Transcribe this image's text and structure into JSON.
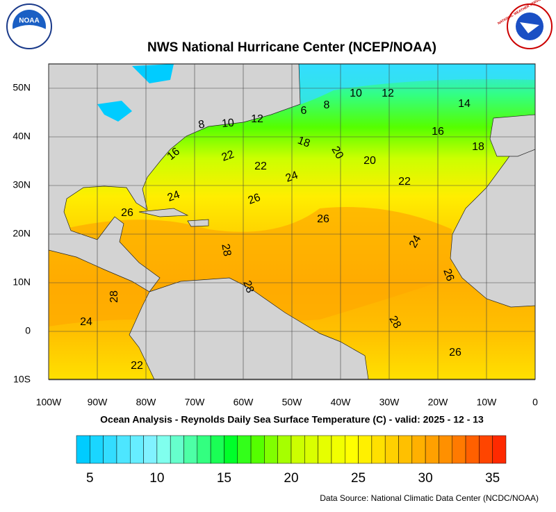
{
  "header": {
    "title": "NWS National Hurricane Center (NCEP/NOAA)",
    "left_logo": "NOAA",
    "right_logo": "NATIONAL WEATHER SERVICE"
  },
  "map": {
    "subtitle": "Ocean Analysis - Reynolds Daily Sea Surface Temperature (C) - valid: 2025 - 12 - 13",
    "lon_ticks": [
      {
        "value": -100,
        "label": "100W"
      },
      {
        "value": -90,
        "label": "90W"
      },
      {
        "value": -80,
        "label": "80W"
      },
      {
        "value": -70,
        "label": "70W"
      },
      {
        "value": -60,
        "label": "60W"
      },
      {
        "value": -50,
        "label": "50W"
      },
      {
        "value": -40,
        "label": "40W"
      },
      {
        "value": -30,
        "label": "30W"
      },
      {
        "value": -20,
        "label": "20W"
      },
      {
        "value": -10,
        "label": "10W"
      },
      0
    ],
    "lat_ticks": [
      {
        "value": 50,
        "label": "50N"
      },
      {
        "value": 40,
        "label": "40N"
      },
      {
        "value": 30,
        "label": "30N"
      },
      {
        "value": 20,
        "label": "20N"
      },
      {
        "value": 10,
        "label": "10N"
      },
      0,
      {
        "value": -10,
        "label": "10S"
      }
    ],
    "contour_labels": [
      "8",
      "10",
      "12",
      "6",
      "8",
      "10",
      "12",
      "14",
      "16",
      "18",
      "18",
      "20",
      "20",
      "16",
      "22",
      "22",
      "24",
      "22",
      "24",
      "26",
      "26",
      "26",
      "24",
      "28",
      "26",
      "28",
      "28",
      "24",
      "28",
      "26",
      "22"
    ]
  },
  "colorbar": {
    "range": [
      4,
      36
    ],
    "ticks": [
      5,
      10,
      15,
      20,
      25,
      30,
      35
    ],
    "colors": [
      "#00ccff",
      "#1ad6ff",
      "#33ddff",
      "#4de6ff",
      "#66eeff",
      "#80f2ff",
      "#80ffee",
      "#66ffcc",
      "#4dffa6",
      "#33ff80",
      "#1aff55",
      "#00ff2a",
      "#33ff1a",
      "#55ff00",
      "#80ff00",
      "#a6ff00",
      "#ccff00",
      "#d9ff00",
      "#e6ff00",
      "#f2ff00",
      "#ffff00",
      "#fff000",
      "#ffe000",
      "#ffd000",
      "#ffc000",
      "#ffb000",
      "#ffa000",
      "#ff9000",
      "#ff7a00",
      "#ff6000",
      "#ff4500",
      "#ff2a00"
    ]
  },
  "footer": {
    "source": "Data Source: National Climatic Data Center (NCDC/NOAA)"
  }
}
